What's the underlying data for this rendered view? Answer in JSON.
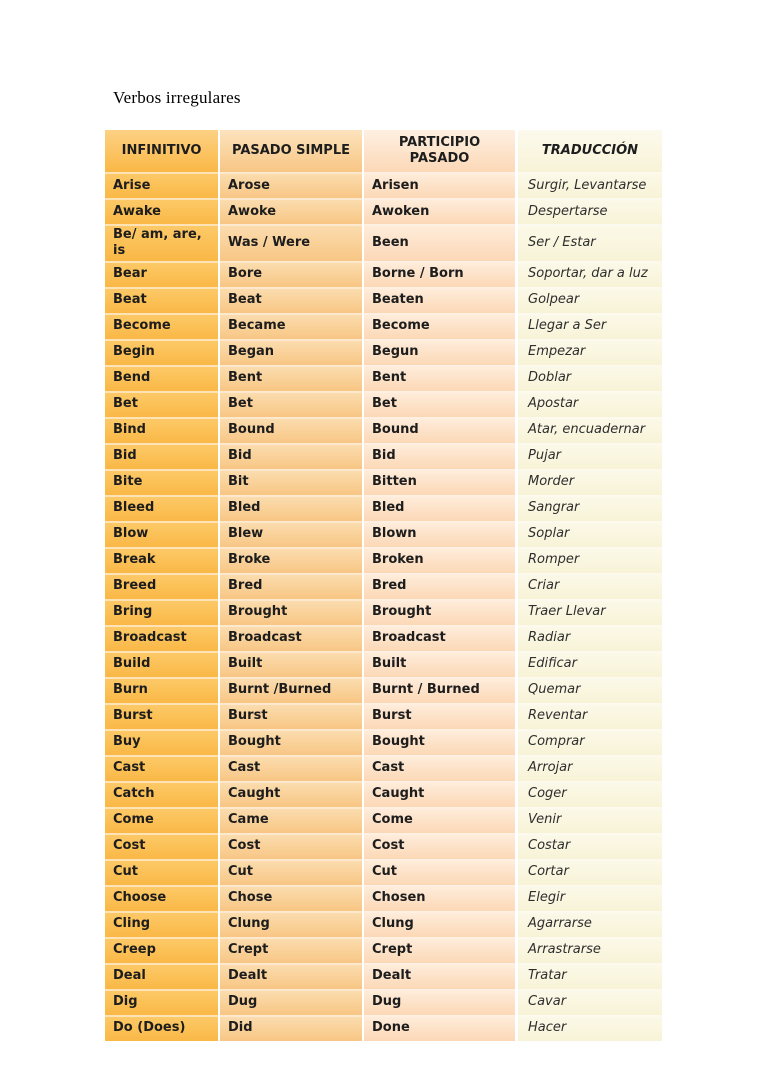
{
  "title": "Verbos irregulares",
  "colors": {
    "col_infinitivo": "#fabf52",
    "col_pasado_simple": "#f9ce94",
    "col_participio": "#fddfc4",
    "col_traduccion": "#faf6df",
    "separator": "#ffffff",
    "text": "#1d1d1d"
  },
  "table": {
    "headers": [
      "INFINITIVO",
      "PASADO SIMPLE",
      "PARTICIPIO PASADO",
      "TRADUCCIÓN"
    ],
    "rows": [
      {
        "infinitivo": "Arise",
        "pasado_simple": "Arose",
        "participio_pasado": "Arisen",
        "traduccion": "Surgir, Levantarse"
      },
      {
        "infinitivo": "Awake",
        "pasado_simple": "Awoke",
        "participio_pasado": "Awoken",
        "traduccion": "Despertarse"
      },
      {
        "infinitivo": "Be/ am, are, is",
        "pasado_simple": "Was / Were",
        "participio_pasado": "Been",
        "traduccion": "Ser / Estar"
      },
      {
        "infinitivo": "Bear",
        "pasado_simple": "Bore",
        "participio_pasado": "Borne / Born",
        "traduccion": "Soportar, dar a luz"
      },
      {
        "infinitivo": "Beat",
        "pasado_simple": "Beat",
        "participio_pasado": "Beaten",
        "traduccion": "Golpear"
      },
      {
        "infinitivo": "Become",
        "pasado_simple": "Became",
        "participio_pasado": "Become",
        "traduccion": "Llegar a Ser"
      },
      {
        "infinitivo": "Begin",
        "pasado_simple": "Began",
        "participio_pasado": "Begun",
        "traduccion": "Empezar"
      },
      {
        "infinitivo": "Bend",
        "pasado_simple": "Bent",
        "participio_pasado": "Bent",
        "traduccion": "Doblar"
      },
      {
        "infinitivo": "Bet",
        "pasado_simple": "Bet",
        "participio_pasado": "Bet",
        "traduccion": "Apostar"
      },
      {
        "infinitivo": "Bind",
        "pasado_simple": "Bound",
        "participio_pasado": "Bound",
        "traduccion": "Atar, encuadernar"
      },
      {
        "infinitivo": "Bid",
        "pasado_simple": "Bid",
        "participio_pasado": "Bid",
        "traduccion": "Pujar"
      },
      {
        "infinitivo": "Bite",
        "pasado_simple": "Bit",
        "participio_pasado": "Bitten",
        "traduccion": "Morder"
      },
      {
        "infinitivo": "Bleed",
        "pasado_simple": "Bled",
        "participio_pasado": "Bled",
        "traduccion": "Sangrar"
      },
      {
        "infinitivo": "Blow",
        "pasado_simple": "Blew",
        "participio_pasado": "Blown",
        "traduccion": "Soplar"
      },
      {
        "infinitivo": "Break",
        "pasado_simple": "Broke",
        "participio_pasado": "Broken",
        "traduccion": "Romper"
      },
      {
        "infinitivo": "Breed",
        "pasado_simple": "Bred",
        "participio_pasado": "Bred",
        "traduccion": "Criar"
      },
      {
        "infinitivo": "Bring",
        "pasado_simple": "Brought",
        "participio_pasado": "Brought",
        "traduccion": "Traer Llevar"
      },
      {
        "infinitivo": "Broadcast",
        "pasado_simple": "Broadcast",
        "participio_pasado": "Broadcast",
        "traduccion": "Radiar"
      },
      {
        "infinitivo": "Build",
        "pasado_simple": "Built",
        "participio_pasado": "Built",
        "traduccion": "Edificar"
      },
      {
        "infinitivo": "Burn",
        "pasado_simple": "Burnt /Burned",
        "participio_pasado": "Burnt / Burned",
        "traduccion": "Quemar"
      },
      {
        "infinitivo": "Burst",
        "pasado_simple": "Burst",
        "participio_pasado": "Burst",
        "traduccion": "Reventar"
      },
      {
        "infinitivo": "Buy",
        "pasado_simple": "Bought",
        "participio_pasado": "Bought",
        "traduccion": "Comprar"
      },
      {
        "infinitivo": "Cast",
        "pasado_simple": "Cast",
        "participio_pasado": "Cast",
        "traduccion": "Arrojar"
      },
      {
        "infinitivo": "Catch",
        "pasado_simple": "Caught",
        "participio_pasado": "Caught",
        "traduccion": "Coger"
      },
      {
        "infinitivo": "Come",
        "pasado_simple": "Came",
        "participio_pasado": "Come",
        "traduccion": "Venir"
      },
      {
        "infinitivo": "Cost",
        "pasado_simple": "Cost",
        "participio_pasado": "Cost",
        "traduccion": "Costar"
      },
      {
        "infinitivo": "Cut",
        "pasado_simple": "Cut",
        "participio_pasado": "Cut",
        "traduccion": "Cortar"
      },
      {
        "infinitivo": "Choose",
        "pasado_simple": "Chose",
        "participio_pasado": "Chosen",
        "traduccion": "Elegir"
      },
      {
        "infinitivo": "Cling",
        "pasado_simple": "Clung",
        "participio_pasado": "Clung",
        "traduccion": "Agarrarse"
      },
      {
        "infinitivo": "Creep",
        "pasado_simple": "Crept",
        "participio_pasado": "Crept",
        "traduccion": "Arrastrarse"
      },
      {
        "infinitivo": "Deal",
        "pasado_simple": "Dealt",
        "participio_pasado": "Dealt",
        "traduccion": "Tratar"
      },
      {
        "infinitivo": "Dig",
        "pasado_simple": "Dug",
        "participio_pasado": "Dug",
        "traduccion": "Cavar"
      },
      {
        "infinitivo": "Do (Does)",
        "pasado_simple": "Did",
        "participio_pasado": "Done",
        "traduccion": "Hacer"
      }
    ]
  }
}
